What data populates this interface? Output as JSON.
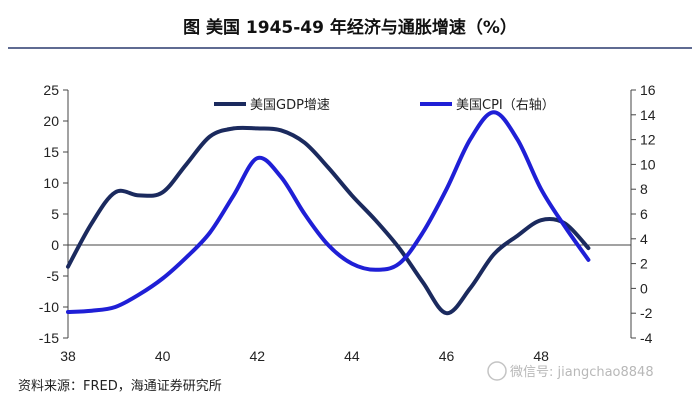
{
  "title": "图  美国 1945-49 年经济与通胀增速（%）",
  "source": "资料来源：FRED，海通证券研究所",
  "watermark": "微信号: jiangchao8848",
  "colors": {
    "gdp": "#1b2a5e",
    "cpi": "#1f1fd6",
    "axis": "#444444",
    "rule": "#2a3a6e"
  },
  "chart_data": {
    "type": "line",
    "x_ticks": [
      38,
      40,
      42,
      44,
      46,
      48
    ],
    "xlim": [
      38,
      49.9
    ],
    "ylim_left": [
      -15,
      25
    ],
    "yticks_left": [
      -15,
      -10,
      -5,
      0,
      5,
      10,
      15,
      20,
      25
    ],
    "ylim_right": [
      -4,
      16
    ],
    "yticks_right": [
      -4,
      -2,
      0,
      2,
      4,
      6,
      8,
      10,
      12,
      14,
      16
    ],
    "legend_position": "top",
    "series": [
      {
        "name": "美国GDP增速",
        "axis": "left",
        "x": [
          38.0,
          38.5,
          39.0,
          39.5,
          40.0,
          40.5,
          41.0,
          41.5,
          42.0,
          42.5,
          43.0,
          43.5,
          44.0,
          44.5,
          45.0,
          45.5,
          46.0,
          46.5,
          47.0,
          47.5,
          48.0,
          48.5,
          49.0
        ],
        "values": [
          -3.5,
          3.5,
          8.5,
          8.0,
          8.5,
          13.0,
          17.5,
          18.8,
          18.8,
          18.5,
          16.5,
          12.5,
          8.0,
          4.0,
          -0.5,
          -6.0,
          -11.0,
          -7.0,
          -1.5,
          1.5,
          4.0,
          3.5,
          -0.5
        ]
      },
      {
        "name": "美国CPI（右轴）",
        "axis": "right",
        "x": [
          38.0,
          38.5,
          39.0,
          39.5,
          40.0,
          40.5,
          41.0,
          41.5,
          42.0,
          42.5,
          43.0,
          43.5,
          44.0,
          44.5,
          45.0,
          45.5,
          46.0,
          46.5,
          47.0,
          47.5,
          48.0,
          48.5,
          49.0
        ],
        "values": [
          -1.9,
          -1.8,
          -1.5,
          -0.5,
          0.8,
          2.5,
          4.5,
          7.5,
          10.5,
          9.0,
          6.0,
          3.5,
          2.0,
          1.5,
          2.0,
          4.5,
          8.0,
          12.0,
          14.2,
          12.0,
          8.0,
          5.0,
          2.3
        ]
      }
    ]
  }
}
